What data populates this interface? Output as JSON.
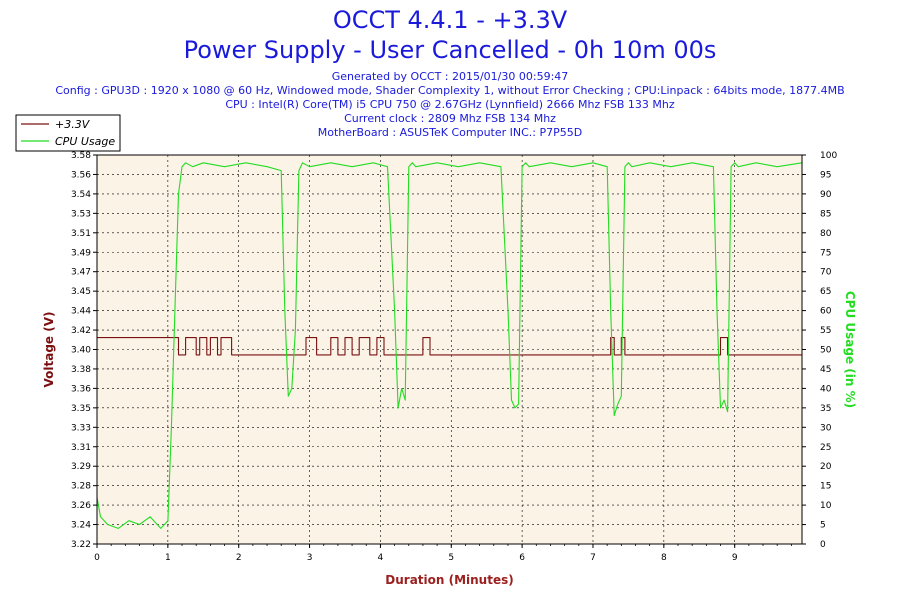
{
  "header": {
    "title": "OCCT 4.4.1 - +3.3V",
    "subtitle": "Power Supply - User Cancelled - 0h 10m 00s",
    "info_lines": [
      "Generated by OCCT : 2015/01/30 00:59:47",
      "Config : GPU3D : 1920 x 1080 @ 60 Hz, Windowed mode, Shader Complexity 1, without Error Checking ; CPU:Linpack : 64bits mode, 1877.4MB",
      "CPU : Intel(R) Core(TM) i5 CPU 750 @ 2.67GHz (Lynnfield) 2666 Mhz FSB 133 Mhz",
      "Current clock : 2809 Mhz FSB 134 Mhz",
      "MotherBoard : ASUSTeK Computer INC.: P7P55D"
    ]
  },
  "colors": {
    "voltage": "#7b1010",
    "cpu": "#22dd22",
    "plot_bg": "#fbf3e6",
    "title": "#1a1adb",
    "xlabel": "#9b2020"
  },
  "chart_data": {
    "type": "line",
    "xlabel": "Duration (Minutes)",
    "ylabel_left": "Voltage (V)",
    "ylabel_right": "CPU Usage (in %)",
    "xlim": [
      0,
      9.95
    ],
    "ylim_left": [
      3.22,
      3.58
    ],
    "ylim_right": [
      0,
      100
    ],
    "x_ticks": [
      0,
      1,
      2,
      3,
      4,
      5,
      6,
      7,
      8,
      9
    ],
    "y_ticks_left": [
      "3.22",
      "3.24",
      "3.26",
      "3.28",
      "3.29",
      "3.31",
      "3.33",
      "3.35",
      "3.36",
      "3.38",
      "3.40",
      "3.42",
      "3.44",
      "3.45",
      "3.47",
      "3.49",
      "3.51",
      "3.53",
      "3.54",
      "3.56",
      "3.58"
    ],
    "y_ticks_right": [
      0,
      5,
      10,
      15,
      20,
      25,
      30,
      35,
      40,
      45,
      50,
      55,
      60,
      65,
      70,
      75,
      80,
      85,
      90,
      95,
      100
    ],
    "grid": true,
    "legend_position": "top-left",
    "series": [
      {
        "name": "+3.3V",
        "axis": "left",
        "x": [
          0,
          1.15,
          1.15,
          1.25,
          1.25,
          1.4,
          1.4,
          1.45,
          1.45,
          1.55,
          1.55,
          1.6,
          1.6,
          1.7,
          1.7,
          1.75,
          1.75,
          1.9,
          1.9,
          2.95,
          2.95,
          3.1,
          3.1,
          3.3,
          3.3,
          3.4,
          3.4,
          3.5,
          3.5,
          3.6,
          3.6,
          3.7,
          3.7,
          3.85,
          3.85,
          3.95,
          3.95,
          4.05,
          4.05,
          4.6,
          4.6,
          4.7,
          4.7,
          4.75,
          4.75,
          7.25,
          7.25,
          7.3,
          7.3,
          7.4,
          7.4,
          7.45,
          7.45,
          8.8,
          8.8,
          8.9,
          8.9,
          9.0,
          9.0,
          9.95
        ],
        "y": [
          3.411,
          3.411,
          3.395,
          3.395,
          3.411,
          3.411,
          3.395,
          3.395,
          3.411,
          3.411,
          3.395,
          3.395,
          3.411,
          3.411,
          3.395,
          3.395,
          3.411,
          3.411,
          3.395,
          3.395,
          3.411,
          3.411,
          3.395,
          3.395,
          3.411,
          3.411,
          3.395,
          3.395,
          3.411,
          3.411,
          3.395,
          3.395,
          3.411,
          3.411,
          3.395,
          3.395,
          3.411,
          3.411,
          3.395,
          3.395,
          3.411,
          3.411,
          3.395,
          3.395,
          3.395,
          3.395,
          3.411,
          3.411,
          3.395,
          3.395,
          3.411,
          3.411,
          3.395,
          3.395,
          3.411,
          3.411,
          3.395,
          3.395,
          3.395,
          3.395
        ]
      },
      {
        "name": "CPU Usage",
        "axis": "right",
        "x": [
          0,
          0.05,
          0.15,
          0.3,
          0.45,
          0.6,
          0.75,
          0.9,
          1.0,
          1.05,
          1.1,
          1.15,
          1.2,
          1.25,
          1.35,
          1.5,
          1.8,
          2.1,
          2.4,
          2.6,
          2.65,
          2.7,
          2.75,
          2.8,
          2.85,
          2.9,
          3.0,
          3.3,
          3.6,
          3.9,
          4.1,
          4.2,
          4.25,
          4.3,
          4.35,
          4.4,
          4.45,
          4.5,
          4.8,
          5.1,
          5.4,
          5.7,
          5.8,
          5.85,
          5.9,
          5.95,
          6.0,
          6.05,
          6.1,
          6.4,
          6.7,
          7.0,
          7.2,
          7.25,
          7.3,
          7.35,
          7.4,
          7.45,
          7.5,
          7.55,
          7.8,
          8.1,
          8.4,
          8.7,
          8.75,
          8.8,
          8.85,
          8.9,
          8.95,
          9.0,
          9.05,
          9.3,
          9.6,
          9.95
        ],
        "y": [
          12,
          7,
          5,
          4,
          6,
          5,
          7,
          4,
          6,
          30,
          60,
          90,
          97,
          98,
          97,
          98,
          97,
          98,
          97,
          96,
          60,
          38,
          40,
          55,
          96,
          98,
          97,
          98,
          97,
          98,
          97,
          60,
          35,
          40,
          37,
          97,
          98,
          97,
          98,
          97,
          98,
          97,
          60,
          37,
          35,
          36,
          97,
          98,
          97,
          98,
          97,
          98,
          97,
          60,
          33,
          36,
          38,
          97,
          98,
          97,
          98,
          97,
          98,
          97,
          60,
          35,
          37,
          34,
          97,
          98,
          97,
          98,
          97,
          98
        ]
      }
    ]
  }
}
